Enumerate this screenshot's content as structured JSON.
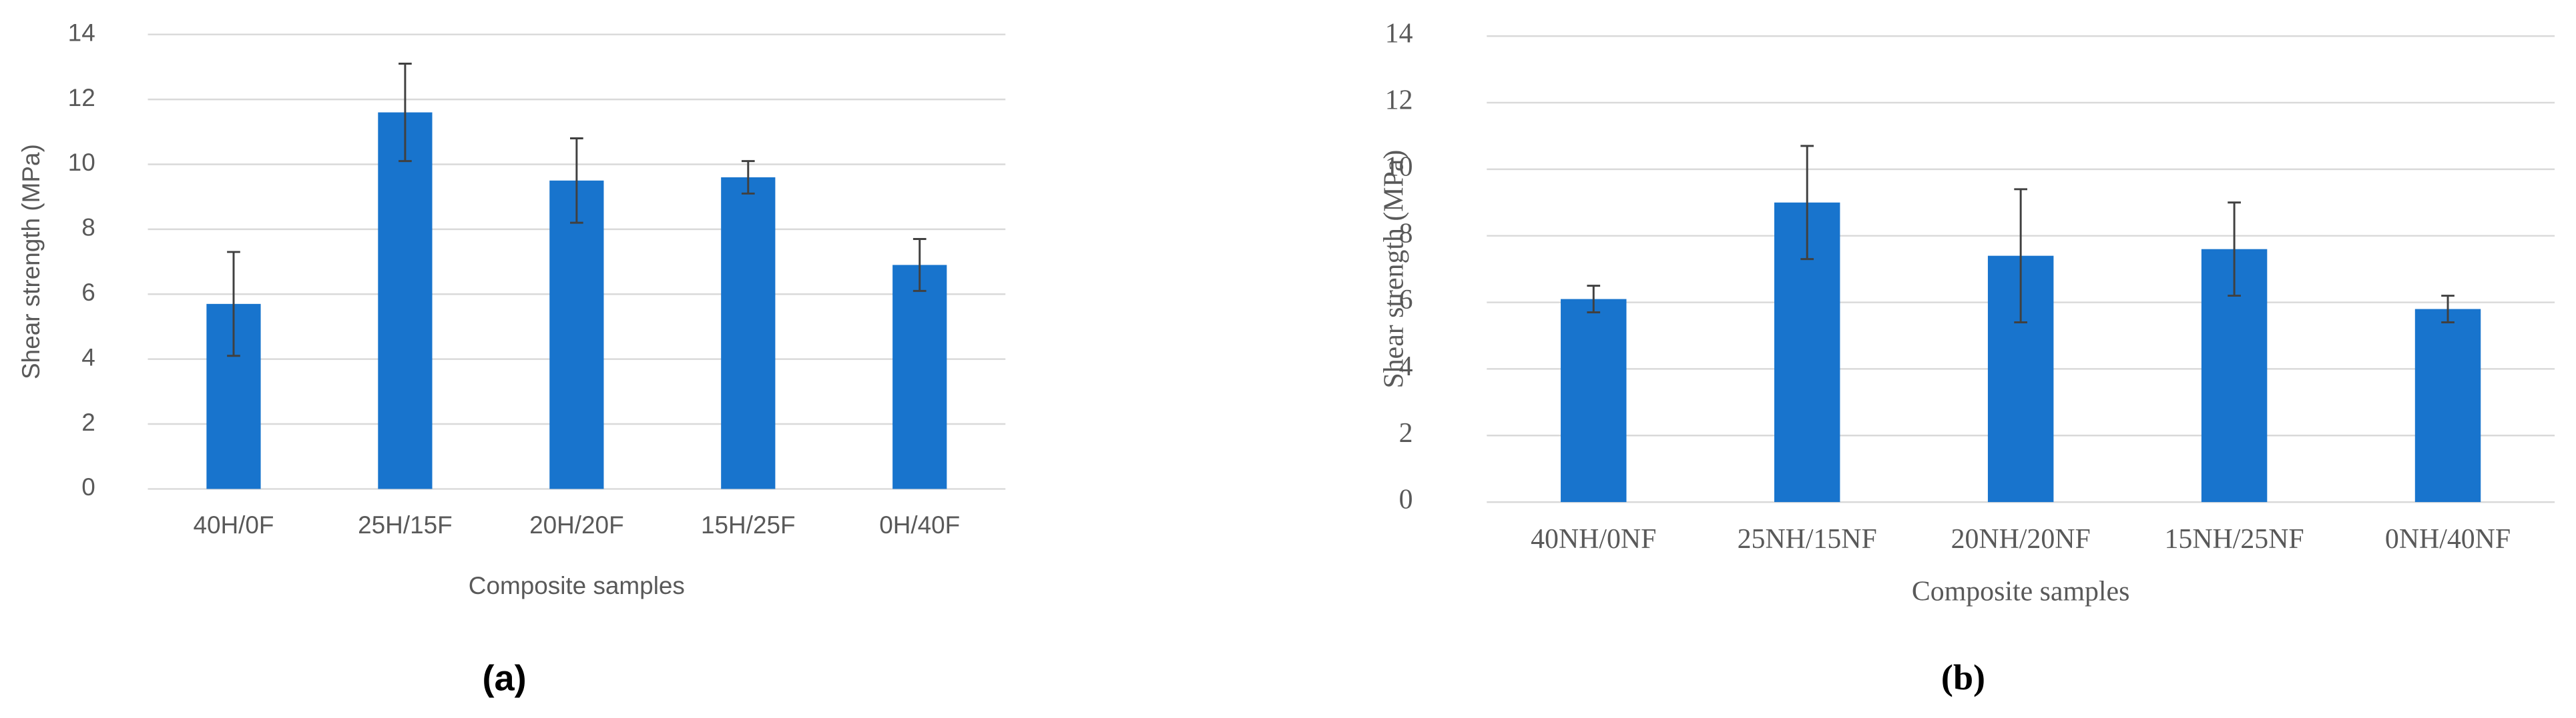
{
  "chart_data": [
    {
      "type": "bar",
      "panel_label": "(a)",
      "xlabel": "Composite samples",
      "ylabel": "Shear strength (MPa)",
      "categories": [
        "40H/0F",
        "25H/15F",
        "20H/20F",
        "15H/25F",
        "0H/40F"
      ],
      "values": [
        5.7,
        11.6,
        9.5,
        9.6,
        6.9
      ],
      "errors": [
        1.6,
        1.5,
        1.3,
        0.5,
        0.8
      ],
      "color": "#1874cd",
      "ylim": [
        0,
        14
      ],
      "yticks": [
        0,
        2,
        4,
        6,
        8,
        10,
        12,
        14
      ],
      "grid": true
    },
    {
      "type": "bar",
      "panel_label": "(b)",
      "xlabel": "Composite samples",
      "ylabel": "Shear strength (MPa)",
      "categories": [
        "40NH/0NF",
        "25NH/15NF",
        "20NH/20NF",
        "15NH/25NF",
        "0NH/40NF"
      ],
      "values": [
        6.1,
        9.0,
        7.4,
        7.6,
        5.8
      ],
      "errors": [
        0.4,
        1.7,
        2.0,
        1.4,
        0.4
      ],
      "color": "#1874cd",
      "ylim": [
        0,
        14
      ],
      "yticks": [
        0,
        2,
        4,
        6,
        8,
        10,
        12,
        14
      ],
      "grid": true
    }
  ]
}
